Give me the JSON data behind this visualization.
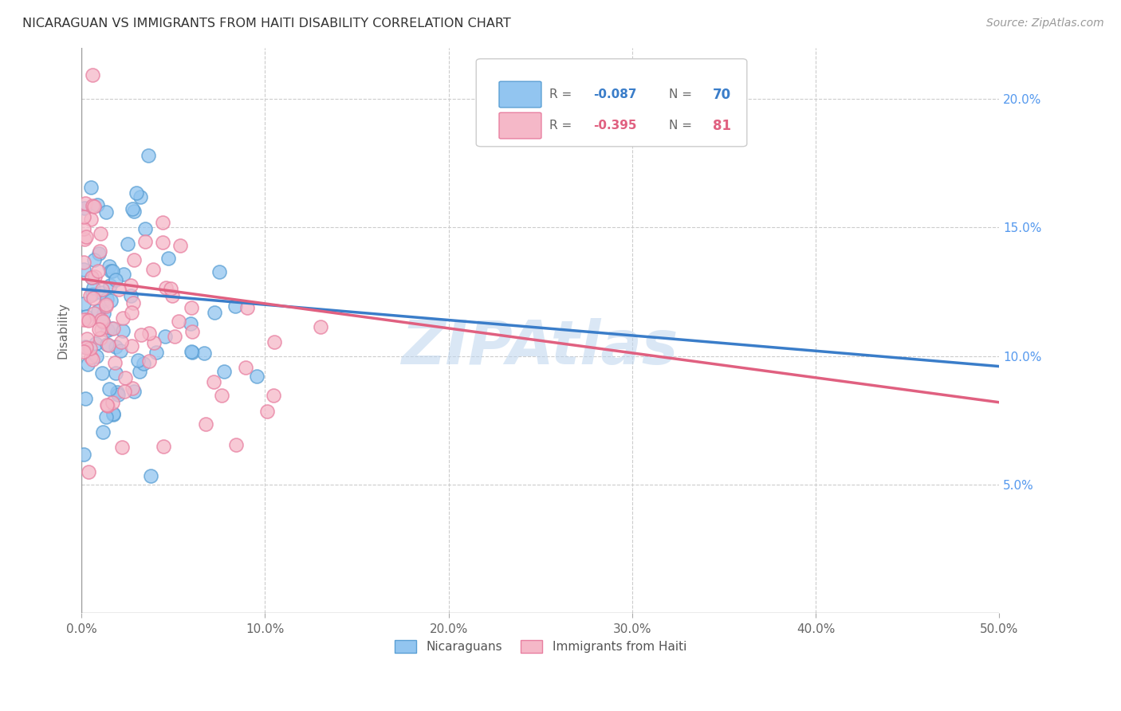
{
  "title": "NICARAGUAN VS IMMIGRANTS FROM HAITI DISABILITY CORRELATION CHART",
  "source": "Source: ZipAtlas.com",
  "ylabel": "Disability",
  "xlim": [
    0.0,
    0.5
  ],
  "ylim": [
    0.0,
    0.22
  ],
  "xtick_vals": [
    0.0,
    0.1,
    0.2,
    0.3,
    0.4,
    0.5
  ],
  "xtick_labels": [
    "0.0%",
    "10.0%",
    "20.0%",
    "30.0%",
    "40.0%",
    "50.0%"
  ],
  "ytick_vals": [
    0.05,
    0.1,
    0.15,
    0.2
  ],
  "ytick_labels": [
    "5.0%",
    "10.0%",
    "15.0%",
    "20.0%"
  ],
  "blue_R": -0.087,
  "blue_N": 70,
  "pink_R": -0.395,
  "pink_N": 81,
  "blue_color": "#92C5F0",
  "pink_color": "#F5B8C8",
  "blue_edge_color": "#5A9FD4",
  "pink_edge_color": "#E87FA0",
  "blue_line_color": "#3A7DC9",
  "pink_line_color": "#E06080",
  "watermark": "ZIPAtlas",
  "legend_blue_label": "Nicaraguans",
  "legend_pink_label": "Immigrants from Haiti",
  "blue_line_y0": 0.126,
  "blue_line_y1": 0.096,
  "pink_line_y0": 0.13,
  "pink_line_y1": 0.082
}
